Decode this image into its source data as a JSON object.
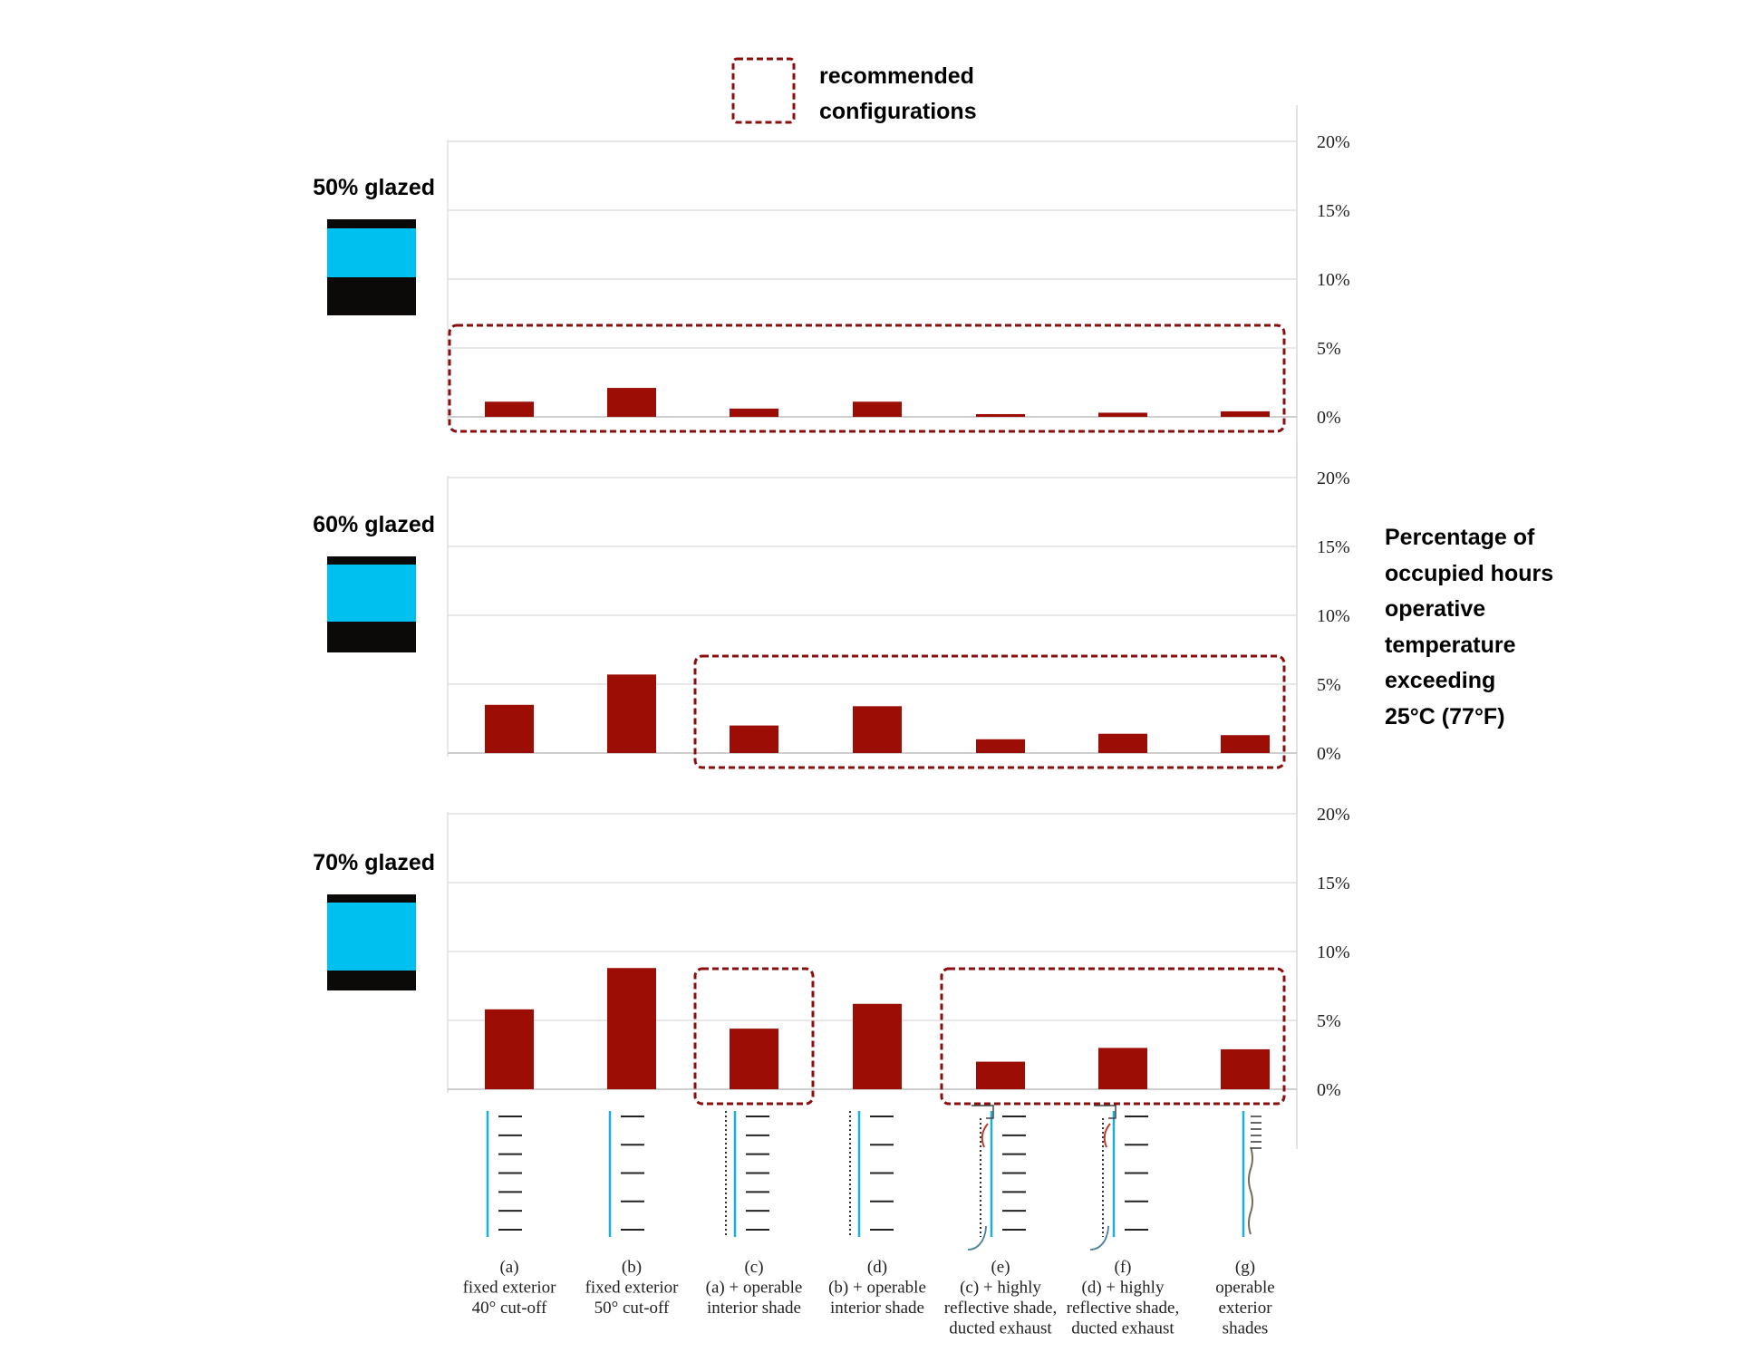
{
  "legend": {
    "line1": "recommended",
    "line2": "configurations"
  },
  "y_axis_label": [
    "Percentage of",
    "occupied hours",
    "operative",
    "temperature",
    "exceeding",
    "25°C (77°F)"
  ],
  "categories": [
    {
      "code": "(a)",
      "line1": "fixed exterior",
      "line2": "40° cut-off"
    },
    {
      "code": "(b)",
      "line1": "fixed exterior",
      "line2": "50° cut-off"
    },
    {
      "code": "(c)",
      "line1": "(a) + operable",
      "line2": "interior shade"
    },
    {
      "code": "(d)",
      "line1": "(b) + operable",
      "line2": "interior shade"
    },
    {
      "code": "(e)",
      "line1": "(c) + highly",
      "line2": "reflective shade,",
      "line3": "ducted exhaust"
    },
    {
      "code": "(f)",
      "line1": "(d) + highly",
      "line2": "reflective shade,",
      "line3": "ducted exhaust"
    },
    {
      "code": "(g)",
      "line1": "operable",
      "line2": "exterior",
      "line3": "shades"
    }
  ],
  "colors": {
    "bar": "#9b0d05",
    "glass": "#00c0ef",
    "frame": "#0c0909",
    "recommended_box": "#8b0e0e"
  },
  "chart_data": [
    {
      "type": "bar",
      "title": "50% glazed",
      "categories": [
        "(a)",
        "(b)",
        "(c)",
        "(d)",
        "(e)",
        "(f)",
        "(g)"
      ],
      "values": [
        1.1,
        2.1,
        0.6,
        1.1,
        0.2,
        0.3,
        0.4
      ],
      "yticks": [
        "0%",
        "5%",
        "10%",
        "15%",
        "20%"
      ],
      "ylim": [
        0,
        20
      ],
      "recommended": [
        0,
        6
      ]
    },
    {
      "type": "bar",
      "title": "60% glazed",
      "categories": [
        "(a)",
        "(b)",
        "(c)",
        "(d)",
        "(e)",
        "(f)",
        "(g)"
      ],
      "values": [
        3.5,
        5.7,
        2.0,
        3.4,
        1.0,
        1.4,
        1.3
      ],
      "yticks": [
        "0%",
        "5%",
        "10%",
        "15%",
        "20%"
      ],
      "ylim": [
        0,
        20
      ],
      "recommended": [
        2,
        6
      ]
    },
    {
      "type": "bar",
      "title": "70% glazed",
      "categories": [
        "(a)",
        "(b)",
        "(c)",
        "(d)",
        "(e)",
        "(f)",
        "(g)"
      ],
      "values": [
        5.8,
        8.8,
        4.4,
        6.2,
        2.0,
        3.0,
        2.9
      ],
      "yticks": [
        "0%",
        "5%",
        "10%",
        "15%",
        "20%"
      ],
      "ylim": [
        0,
        20
      ],
      "recommended": [
        [
          2,
          2
        ],
        [
          4,
          6
        ]
      ]
    }
  ]
}
